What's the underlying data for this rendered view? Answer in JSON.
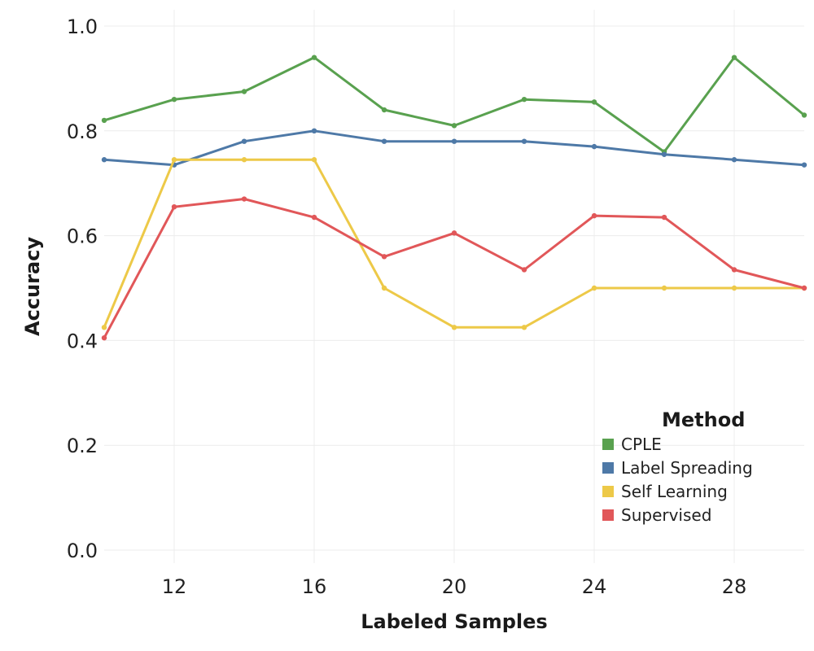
{
  "chart_data": {
    "type": "line",
    "title": "",
    "xlabel": "Labeled Samples",
    "ylabel": "Accuracy",
    "xlim": [
      10,
      30
    ],
    "ylim": [
      0.0,
      1.0
    ],
    "x_ticks": [
      12,
      16,
      20,
      24,
      28
    ],
    "x_tick_labels": [
      "12",
      "16",
      "20",
      "24",
      "28"
    ],
    "y_ticks": [
      0.0,
      0.2,
      0.4,
      0.6,
      0.8,
      1.0
    ],
    "y_tick_labels": [
      "0.0",
      "0.2",
      "0.4",
      "0.6",
      "0.8",
      "1.0"
    ],
    "grid": true,
    "legend": {
      "title": "Method",
      "placement": "bottom-right"
    },
    "x": [
      10,
      12,
      14,
      16,
      18,
      20,
      22,
      24,
      26,
      28,
      30
    ],
    "series": [
      {
        "name": "CPLE",
        "color": "#59a14f",
        "values": [
          0.82,
          0.86,
          0.875,
          0.94,
          0.84,
          0.81,
          0.86,
          0.855,
          0.76,
          0.94,
          0.83
        ]
      },
      {
        "name": "Label Spreading",
        "color": "#4e79a7",
        "values": [
          0.745,
          0.735,
          0.78,
          0.8,
          0.78,
          0.78,
          0.78,
          0.77,
          0.755,
          0.745,
          0.735
        ]
      },
      {
        "name": "Self Learning",
        "color": "#edc948",
        "values": [
          0.425,
          0.745,
          0.745,
          0.745,
          0.5,
          0.425,
          0.425,
          0.5,
          0.5,
          0.5,
          0.5
        ]
      },
      {
        "name": "Supervised",
        "color": "#e15759",
        "values": [
          0.405,
          0.655,
          0.67,
          0.635,
          0.56,
          0.605,
          0.535,
          0.638,
          0.635,
          0.535,
          0.5
        ]
      }
    ]
  }
}
